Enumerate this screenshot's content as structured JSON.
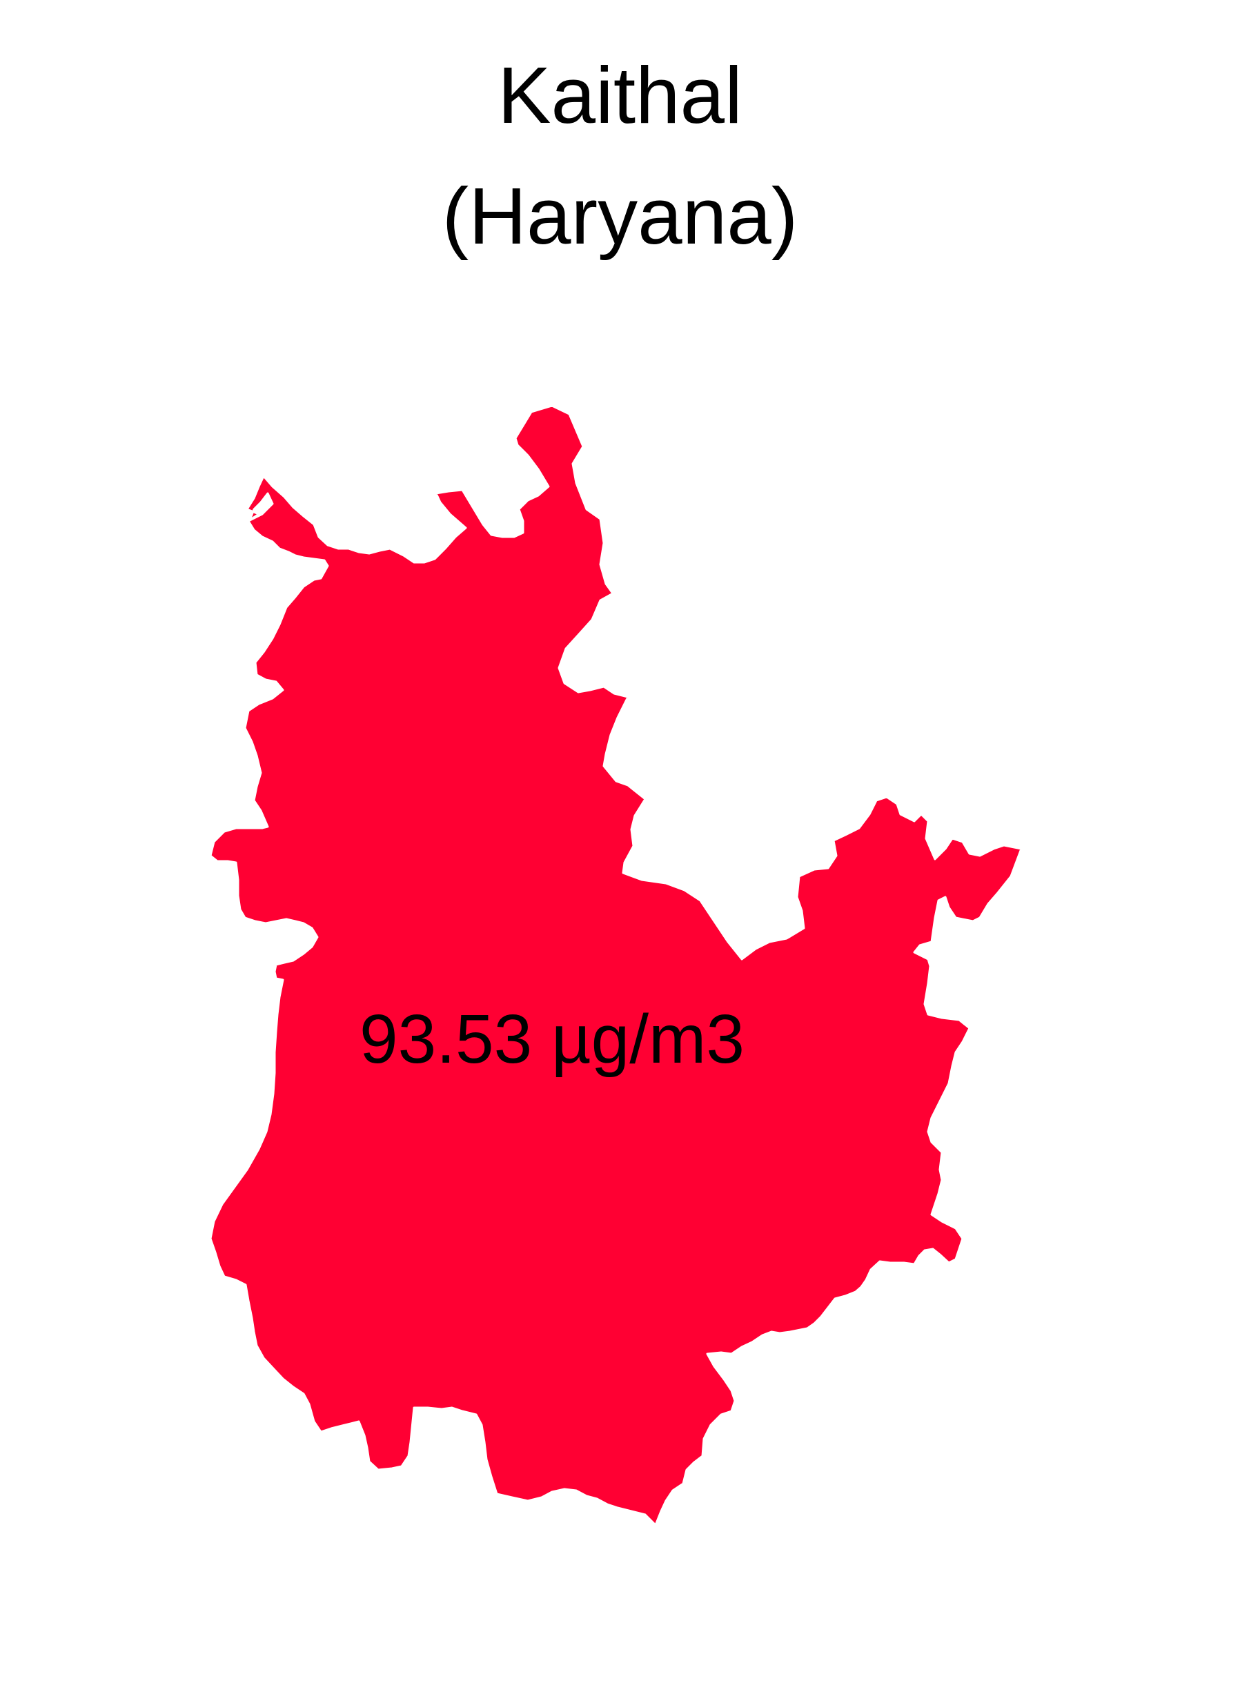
{
  "title": {
    "line1": "Kaithal",
    "line2": "(Haryana)"
  },
  "district": {
    "name": "Kaithal",
    "state": "Haryana",
    "value_label": "93.53 µg/m3",
    "fill_color": "#ff0033"
  }
}
